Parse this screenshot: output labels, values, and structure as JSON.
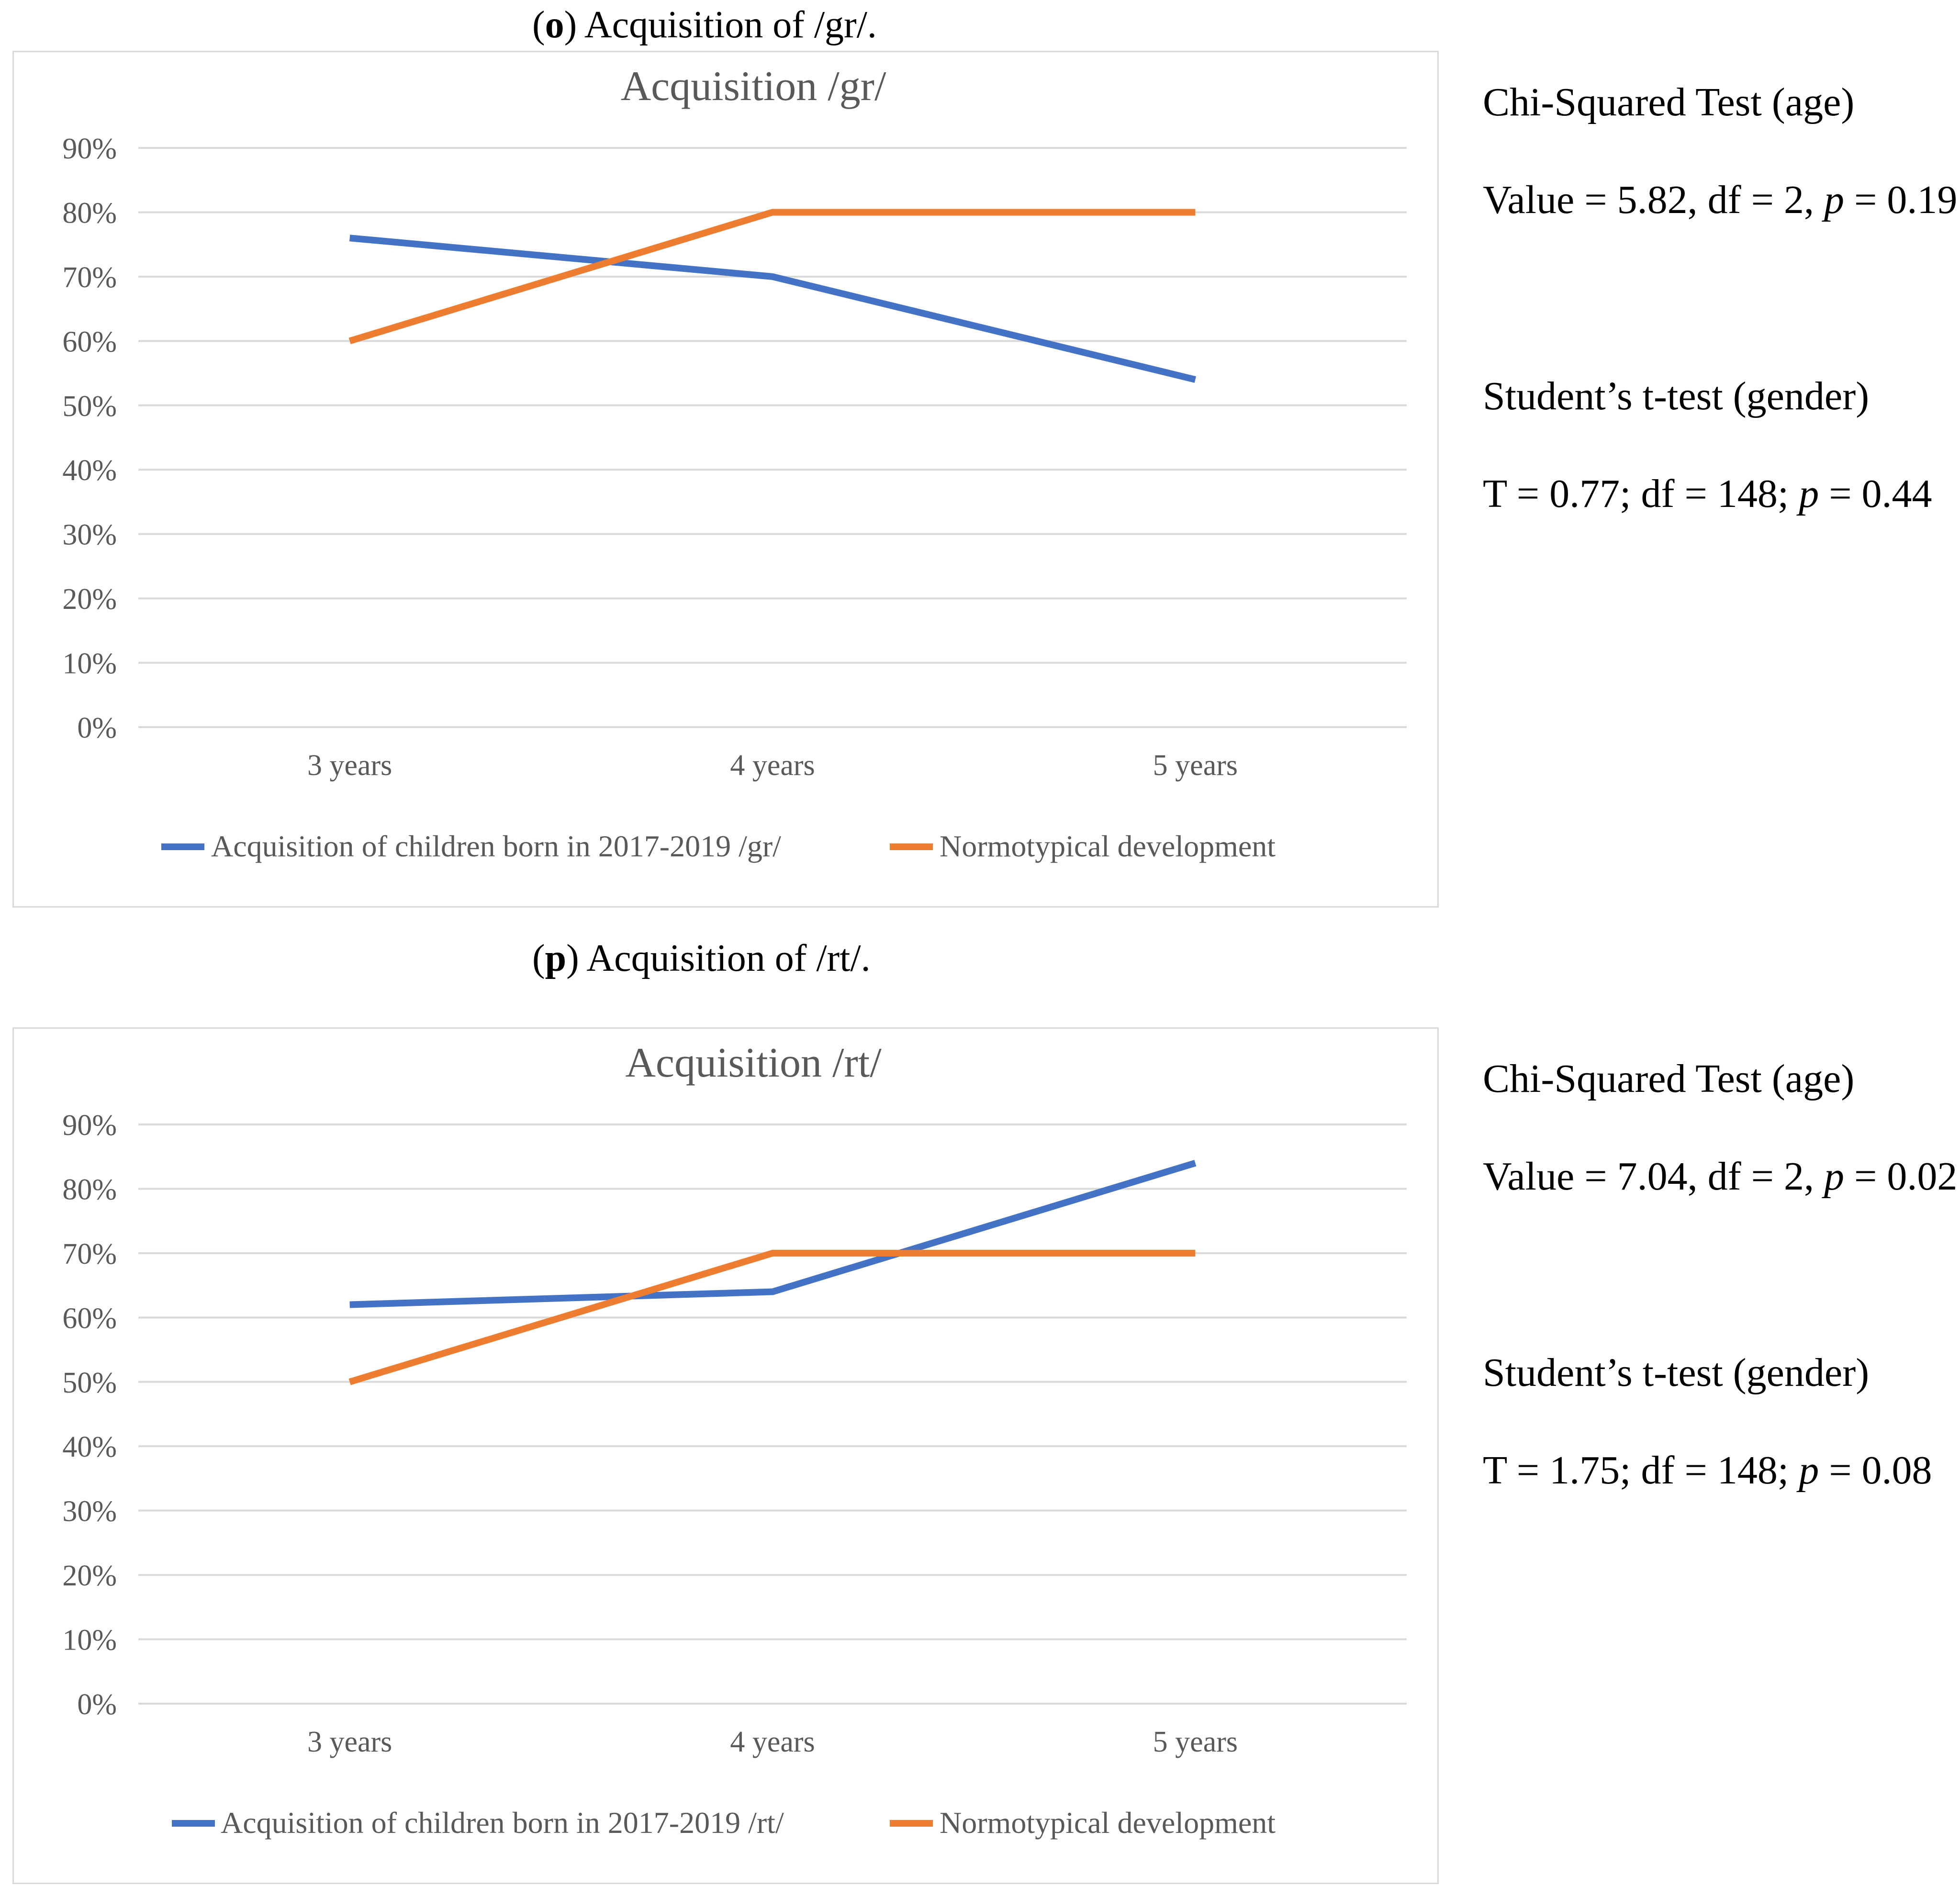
{
  "panels": [
    {
      "letter": "o",
      "caption_text": " Acquisition of /gr/.",
      "stats": {
        "chi_title": "Chi-Squared Test (age)",
        "chi_value_prefix": "Value = 5.82, df = 2, ",
        "p_symbol": "p",
        "chi_value_suffix": " = 0.19",
        "t_title": "Student’s t-test (gender)",
        "t_value_prefix": "T = 0.77; df = 148; ",
        "t_value_suffix": " = 0.44"
      }
    },
    {
      "letter": "p",
      "caption_text": " Acquisition of /rt/.",
      "stats": {
        "chi_title": "Chi-Squared Test (age)",
        "chi_value_prefix": "Value = 7.04, df = 2, ",
        "p_symbol": "p",
        "chi_value_suffix": " = 0.02",
        "t_title": "Student’s t-test (gender)",
        "t_value_prefix": "T = 1.75; df = 148; ",
        "t_value_suffix": " = 0.08"
      }
    }
  ],
  "colors": {
    "blue": "#4472C4",
    "orange": "#ED7D31",
    "grid": "#d9d9d9",
    "text": "#595959"
  },
  "chart_data": [
    {
      "type": "line",
      "title": "Acquisition /gr/",
      "categories": [
        "3 years",
        "4 years",
        "5 years"
      ],
      "y_ticks": [
        "0%",
        "10%",
        "20%",
        "30%",
        "40%",
        "50%",
        "60%",
        "70%",
        "80%",
        "90%"
      ],
      "ylim": [
        0,
        90
      ],
      "grid": true,
      "legend_position": "bottom",
      "series": [
        {
          "name": "Acquisition of children born in 2017-2019  /gr/",
          "color": "#4472C4",
          "values": [
            76,
            70,
            54
          ]
        },
        {
          "name": "Normotypical development",
          "color": "#ED7D31",
          "values": [
            60,
            80,
            80
          ]
        }
      ]
    },
    {
      "type": "line",
      "title": "Acquisition /rt/",
      "categories": [
        "3 years",
        "4 years",
        "5 years"
      ],
      "y_ticks": [
        "0%",
        "10%",
        "20%",
        "30%",
        "40%",
        "50%",
        "60%",
        "70%",
        "80%",
        "90%"
      ],
      "ylim": [
        0,
        90
      ],
      "grid": true,
      "legend_position": "bottom",
      "series": [
        {
          "name": "Acquisition of children born in 2017-2019 /rt/",
          "color": "#4472C4",
          "values": [
            62,
            64,
            84
          ]
        },
        {
          "name": "Normotypical development",
          "color": "#ED7D31",
          "values": [
            50,
            70,
            70
          ]
        }
      ]
    }
  ]
}
